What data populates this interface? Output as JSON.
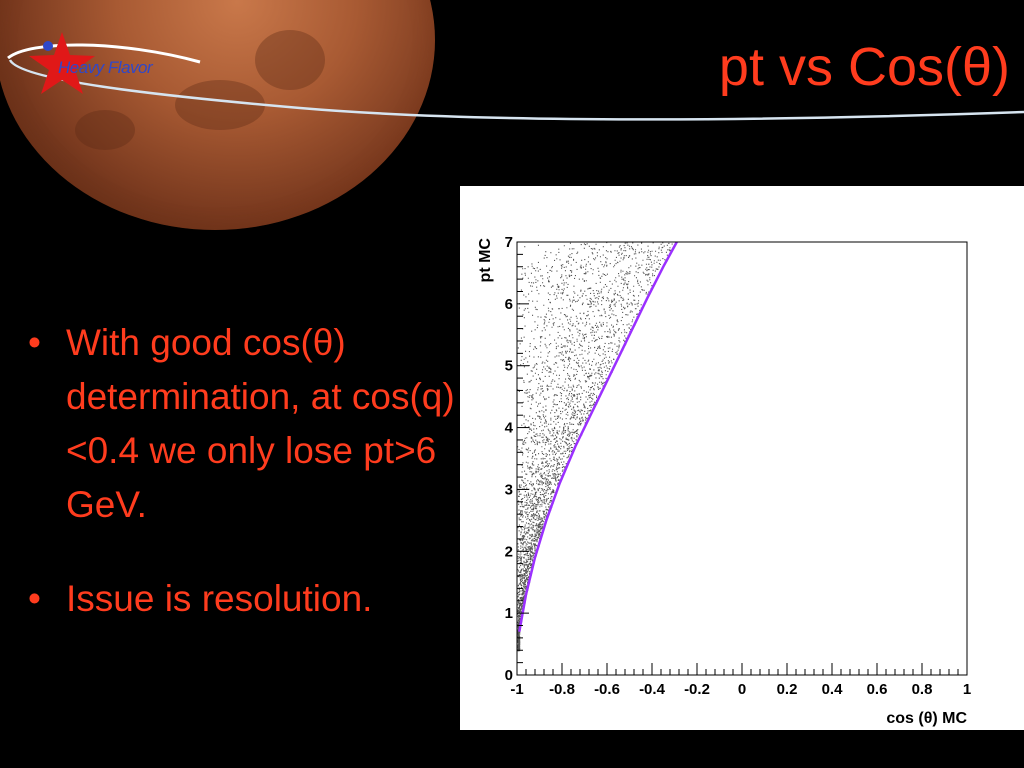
{
  "slide": {
    "title": "pt vs Cos(θ)",
    "logo_text": "Heavy Flavor",
    "bullets": [
      "With good cos(θ) determination, at cos(q)<0.4 we only lose pt>6 GeV.",
      "Issue is resolution."
    ],
    "colors": {
      "text": "#ff3c1e",
      "background": "#000000",
      "logo": "#3048c8",
      "curve": "#9b30ff"
    }
  },
  "chart_data": {
    "type": "scatter",
    "xlabel": "cos (θ) MC",
    "ylabel": "pt MC",
    "xlim": [
      -1,
      1
    ],
    "ylim": [
      0,
      7
    ],
    "x_ticks": [
      "-1",
      "-0.8",
      "-0.6",
      "-0.4",
      "-0.2",
      "0",
      "0.2",
      "0.4",
      "0.6",
      "0.8",
      "1"
    ],
    "y_ticks": [
      "0",
      "1",
      "2",
      "3",
      "4",
      "5",
      "6",
      "7"
    ],
    "boundary_curve": {
      "x": [
        -0.99,
        -0.96,
        -0.92,
        -0.87,
        -0.81,
        -0.74,
        -0.66,
        -0.58,
        -0.5,
        -0.42,
        -0.35,
        -0.29
      ],
      "y": [
        0.7,
        1.3,
        1.9,
        2.5,
        3.1,
        3.7,
        4.3,
        4.9,
        5.5,
        6.1,
        6.6,
        7.0
      ]
    },
    "fill_description_region": "points fill area left of boundary curve"
  }
}
